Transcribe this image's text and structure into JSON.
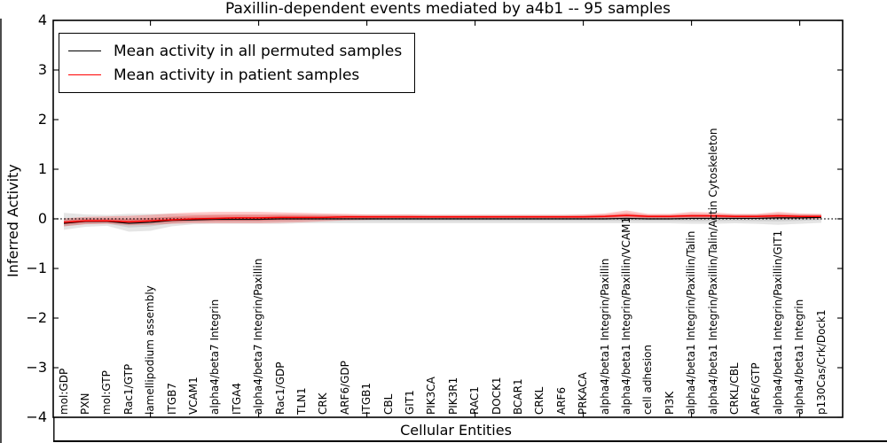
{
  "title": "Paxillin-dependent events mediated by a4b1 -- 95 samples",
  "axes": {
    "ylabel": "Inferred Activity",
    "xlabel": "Cellular Entities",
    "yticks": [
      4,
      3,
      2,
      1,
      0,
      -1,
      -2,
      -3,
      -4
    ]
  },
  "legend": {
    "entries": [
      {
        "label": "Mean activity in all permuted samples",
        "color": "#000000"
      },
      {
        "label": "Mean activity in patient samples",
        "color": "#ff0000"
      }
    ]
  },
  "chart_data": {
    "type": "line",
    "title": "Paxillin-dependent events mediated by a4b1 -- 95 samples",
    "xlabel": "Cellular Entities",
    "ylabel": "Inferred Activity",
    "ylim": [
      -4,
      4
    ],
    "grid": false,
    "legend_position": "upper left",
    "zero_line_style": "dotted",
    "band_note": "each series drawn as mean line with translucent uncertainty band",
    "categories": [
      "mol:GDP",
      "PXN",
      "mol:GTP",
      "Rac1/GTP",
      "lamellipodium assembly",
      "ITGB7",
      "VCAM1",
      "alpha4/beta7 Integrin",
      "ITGA4",
      "alpha4/beta7 Integrin/Paxillin",
      "Rac1/GDP",
      "TLN1",
      "CRK",
      "ARF6/GDP",
      "ITGB1",
      "CBL",
      "GIT1",
      "PIK3CA",
      "PIK3R1",
      "RAC1",
      "DOCK1",
      "BCAR1",
      "CRKL",
      "ARF6",
      "PRKACA",
      "alpha4/beta1 Integrin/Paxillin",
      "alpha4/beta1 Integrin/Paxillin/VCAM1",
      "cell adhesion",
      "PI3K",
      "alpha4/beta1 Integrin/Paxillin/Talin",
      "alpha4/beta1 Integrin/Paxillin/Talin/Actin Cytoskeleton",
      "CRKL/CBL",
      "ARF6/GTP",
      "alpha4/beta1 Integrin/Paxillin/GIT1",
      "alpha4/beta1 Integrin",
      "p130Cas/Crk/Dock1"
    ],
    "series": [
      {
        "name": "Mean activity in all permuted samples",
        "color": "#000000",
        "band_color": "rgba(0,0,0,0.10)",
        "values": [
          -0.09,
          -0.05,
          -0.05,
          -0.09,
          -0.07,
          -0.03,
          -0.02,
          -0.01,
          -0.01,
          -0.01,
          0.0,
          0.0,
          0.0,
          0.0,
          0.0,
          0.0,
          0.0,
          0.0,
          0.0,
          0.0,
          0.0,
          0.0,
          0.0,
          0.0,
          0.0,
          0.0,
          0.01,
          0.0,
          0.0,
          0.01,
          0.01,
          0.01,
          0.01,
          0.02,
          0.02,
          0.03
        ],
        "band_upper": [
          0.12,
          0.09,
          0.08,
          0.1,
          0.1,
          0.1,
          0.09,
          0.09,
          0.09,
          0.09,
          0.09,
          0.09,
          0.09,
          0.08,
          0.08,
          0.08,
          0.08,
          0.08,
          0.08,
          0.08,
          0.08,
          0.08,
          0.08,
          0.08,
          0.08,
          0.08,
          0.09,
          0.08,
          0.08,
          0.09,
          0.09,
          0.09,
          0.09,
          0.1,
          0.09,
          0.09
        ],
        "band_lower": [
          -0.22,
          -0.16,
          -0.14,
          -0.26,
          -0.24,
          -0.15,
          -0.11,
          -0.1,
          -0.1,
          -0.1,
          -0.1,
          -0.09,
          -0.09,
          -0.09,
          -0.09,
          -0.09,
          -0.09,
          -0.09,
          -0.09,
          -0.09,
          -0.09,
          -0.09,
          -0.09,
          -0.09,
          -0.09,
          -0.09,
          -0.09,
          -0.09,
          -0.09,
          -0.1,
          -0.1,
          -0.09,
          -0.1,
          -0.12,
          -0.1,
          -0.08
        ]
      },
      {
        "name": "Mean activity in patient samples",
        "color": "#ff0000",
        "band_color": "rgba(255,0,0,0.22)",
        "values": [
          -0.07,
          -0.04,
          -0.04,
          -0.06,
          -0.04,
          -0.02,
          0.0,
          0.01,
          0.02,
          0.02,
          0.03,
          0.03,
          0.03,
          0.04,
          0.04,
          0.04,
          0.04,
          0.04,
          0.04,
          0.04,
          0.04,
          0.04,
          0.04,
          0.04,
          0.04,
          0.05,
          0.07,
          0.05,
          0.05,
          0.06,
          0.06,
          0.05,
          0.05,
          0.06,
          0.05,
          0.05
        ],
        "band_upper": [
          0.01,
          0.04,
          0.05,
          0.06,
          0.08,
          0.11,
          0.13,
          0.14,
          0.14,
          0.14,
          0.13,
          0.12,
          0.11,
          0.1,
          0.09,
          0.09,
          0.09,
          0.08,
          0.08,
          0.08,
          0.08,
          0.08,
          0.08,
          0.08,
          0.09,
          0.11,
          0.17,
          0.1,
          0.1,
          0.14,
          0.13,
          0.1,
          0.1,
          0.14,
          0.11,
          0.1
        ],
        "band_lower": [
          -0.15,
          -0.11,
          -0.1,
          -0.13,
          -0.12,
          -0.1,
          -0.09,
          -0.09,
          -0.09,
          -0.09,
          -0.08,
          -0.07,
          -0.05,
          -0.03,
          -0.02,
          -0.01,
          -0.01,
          -0.01,
          -0.01,
          -0.01,
          0.0,
          0.0,
          0.0,
          0.0,
          0.0,
          0.0,
          0.01,
          0.0,
          0.0,
          0.01,
          0.01,
          0.0,
          0.0,
          0.0,
          0.0,
          0.0
        ]
      }
    ],
    "x_major_tick_indices": [
      4,
      9,
      14,
      19,
      24,
      29,
      34
    ]
  }
}
